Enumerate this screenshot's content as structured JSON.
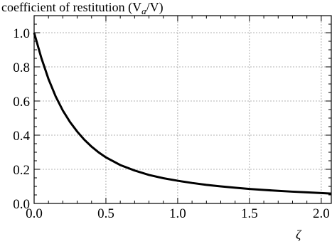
{
  "chart_data": {
    "type": "line",
    "title": "coefficient of restitution (V",
    "title_sub": "a",
    "title_tail": "/V)",
    "xlabel": "ζ",
    "ylabel": "",
    "xlim": [
      0,
      2.07
    ],
    "ylim": [
      0,
      1.1
    ],
    "x_ticks": [
      0,
      0.5,
      1.0,
      1.5,
      2.0
    ],
    "x_tick_labels": [
      "0.0",
      "0.5",
      "1.0",
      "1.5",
      "2.0"
    ],
    "y_ticks": [
      0,
      0.2,
      0.4,
      0.6,
      0.8,
      1.0
    ],
    "y_tick_labels": [
      "0.0",
      "0.2",
      "0.4",
      "0.6",
      "0.8",
      "1.0"
    ],
    "grid": true,
    "series": [
      {
        "x": [
          0,
          0.05,
          0.1,
          0.15,
          0.2,
          0.25,
          0.3,
          0.35,
          0.4,
          0.45,
          0.5,
          0.6,
          0.7,
          0.8,
          0.9,
          1.0,
          1.1,
          1.2,
          1.3,
          1.4,
          1.5,
          1.6,
          1.7,
          1.8,
          1.9,
          2.0,
          2.07
        ],
        "y": [
          1.0,
          0.853,
          0.729,
          0.627,
          0.544,
          0.477,
          0.421,
          0.373,
          0.333,
          0.299,
          0.27,
          0.225,
          0.193,
          0.167,
          0.148,
          0.133,
          0.12,
          0.109,
          0.1,
          0.092,
          0.085,
          0.079,
          0.074,
          0.069,
          0.065,
          0.061,
          0.058
        ]
      }
    ]
  }
}
